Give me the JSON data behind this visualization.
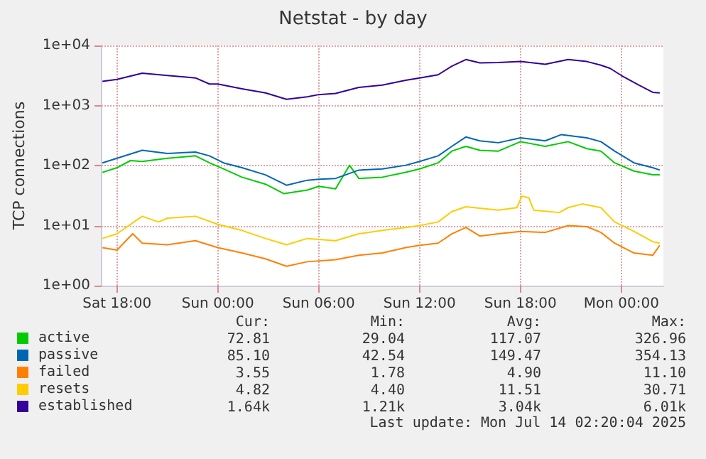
{
  "chart_data": {
    "type": "line",
    "title": "Netstat - by day",
    "ylabel": "TCP connections",
    "log": "y",
    "grid": true,
    "legend": "bottom left",
    "line_style": "solid",
    "marker": "none",
    "xlim": [
      "2025-07-12T17:05",
      "2025-07-14T02:30"
    ],
    "xticks": [
      {
        "value": "2025-07-12T18:00",
        "label": "Sat 18:00"
      },
      {
        "value": "2025-07-13T00:00",
        "label": "Sun 00:00"
      },
      {
        "value": "2025-07-13T06:00",
        "label": "Sun 06:00"
      },
      {
        "value": "2025-07-13T12:00",
        "label": "Sun 12:00"
      },
      {
        "value": "2025-07-13T18:00",
        "label": "Sun 18:00"
      },
      {
        "value": "2025-07-14T00:00",
        "label": "Mon 00:00"
      }
    ],
    "ylim": [
      1,
      10000
    ],
    "yticks": [
      {
        "value": 1,
        "label": "1e+00"
      },
      {
        "value": 10,
        "label": "1e+01"
      },
      {
        "value": 100,
        "label": "1e+02"
      },
      {
        "value": 1000,
        "label": "1e+03"
      },
      {
        "value": 10000,
        "label": "1e+04"
      }
    ],
    "series": [
      {
        "name": "active",
        "color": "#00cc00",
        "x": [
          "2025-07-12T17:08",
          "2025-07-12T18:00",
          "2025-07-12T18:48",
          "2025-07-12T19:30",
          "2025-07-12T21:00",
          "2025-07-12T22:40",
          "2025-07-12T23:30",
          "2025-07-13T00:20",
          "2025-07-13T01:26",
          "2025-07-13T02:50",
          "2025-07-13T03:56",
          "2025-07-13T05:19",
          "2025-07-13T06:00",
          "2025-07-13T07:00",
          "2025-07-13T07:50",
          "2025-07-13T08:23",
          "2025-07-13T09:47",
          "2025-07-13T11:10",
          "2025-07-13T12:00",
          "2025-07-13T13:06",
          "2025-07-13T13:55",
          "2025-07-13T14:45",
          "2025-07-13T15:35",
          "2025-07-13T16:41",
          "2025-07-13T18:00",
          "2025-07-13T19:28",
          "2025-07-13T20:50",
          "2025-07-13T21:57",
          "2025-07-13T22:47",
          "2025-07-13T23:36",
          "2025-07-14T00:45",
          "2025-07-14T01:52",
          "2025-07-14T02:17"
        ],
        "values": [
          77,
          92,
          121,
          117,
          132,
          145,
          111,
          88,
          64,
          49,
          34,
          39,
          45,
          41,
          101,
          61,
          64,
          77,
          88,
          111,
          174,
          209,
          180,
          174,
          250,
          209,
          250,
          191,
          174,
          111,
          81,
          70,
          70
        ]
      },
      {
        "name": "passive",
        "color": "#0066b3",
        "x": [
          "2025-07-12T17:08",
          "2025-07-12T18:00",
          "2025-07-12T19:30",
          "2025-07-12T21:00",
          "2025-07-12T22:40",
          "2025-07-12T23:30",
          "2025-07-13T00:20",
          "2025-07-13T01:26",
          "2025-07-13T02:50",
          "2025-07-13T04:05",
          "2025-07-13T05:19",
          "2025-07-13T06:00",
          "2025-07-13T07:00",
          "2025-07-13T08:23",
          "2025-07-13T09:47",
          "2025-07-13T11:10",
          "2025-07-13T12:00",
          "2025-07-13T13:06",
          "2025-07-13T13:55",
          "2025-07-13T14:45",
          "2025-07-13T15:35",
          "2025-07-13T16:41",
          "2025-07-13T18:00",
          "2025-07-13T19:28",
          "2025-07-13T20:26",
          "2025-07-13T21:57",
          "2025-07-13T22:47",
          "2025-07-13T23:36",
          "2025-07-14T00:45",
          "2025-07-14T01:52",
          "2025-07-14T02:17"
        ],
        "values": [
          111,
          132,
          180,
          159,
          168,
          145,
          111,
          92,
          70,
          47,
          57,
          59,
          61,
          84,
          88,
          101,
          117,
          145,
          209,
          299,
          258,
          240,
          290,
          258,
          328,
          290,
          250,
          174,
          111,
          92,
          84
        ]
      },
      {
        "name": "failed",
        "color": "#ff8000",
        "x": [
          "2025-07-12T17:08",
          "2025-07-12T18:00",
          "2025-07-12T18:56",
          "2025-07-12T19:30",
          "2025-07-12T21:00",
          "2025-07-12T22:40",
          "2025-07-13T00:00",
          "2025-07-13T01:26",
          "2025-07-13T02:50",
          "2025-07-13T04:05",
          "2025-07-13T05:19",
          "2025-07-13T07:00",
          "2025-07-13T08:23",
          "2025-07-13T09:47",
          "2025-07-13T11:10",
          "2025-07-13T12:00",
          "2025-07-13T13:06",
          "2025-07-13T13:55",
          "2025-07-13T14:45",
          "2025-07-13T15:35",
          "2025-07-13T16:41",
          "2025-07-13T18:00",
          "2025-07-13T19:28",
          "2025-07-13T20:50",
          "2025-07-13T21:57",
          "2025-07-13T22:47",
          "2025-07-13T23:36",
          "2025-07-14T00:45",
          "2025-07-14T01:52",
          "2025-07-14T02:17"
        ],
        "values": [
          4.3,
          3.9,
          7.3,
          5.1,
          4.8,
          5.6,
          4.3,
          3.5,
          2.8,
          2.1,
          2.5,
          2.7,
          3.2,
          3.5,
          4.3,
          4.7,
          5.1,
          7.3,
          9.3,
          6.7,
          7.3,
          8.0,
          7.7,
          10,
          9.6,
          7.7,
          5.1,
          3.5,
          3.2,
          4.7
        ]
      },
      {
        "name": "resets",
        "color": "#ffcc00",
        "x": [
          "2025-07-12T17:08",
          "2025-07-12T18:00",
          "2025-07-12T19:30",
          "2025-07-12T20:28",
          "2025-07-12T21:00",
          "2025-07-12T22:40",
          "2025-07-13T00:00",
          "2025-07-13T01:26",
          "2025-07-13T02:50",
          "2025-07-13T04:05",
          "2025-07-13T05:19",
          "2025-07-13T07:00",
          "2025-07-13T08:23",
          "2025-07-13T09:47",
          "2025-07-13T11:10",
          "2025-07-13T12:00",
          "2025-07-13T13:06",
          "2025-07-13T13:55",
          "2025-07-13T14:45",
          "2025-07-13T16:41",
          "2025-07-13T17:47",
          "2025-07-13T18:05",
          "2025-07-13T18:30",
          "2025-07-13T18:47",
          "2025-07-13T20:18",
          "2025-07-13T20:50",
          "2025-07-13T21:40",
          "2025-07-13T22:47",
          "2025-07-13T23:36",
          "2025-07-14T00:45",
          "2025-07-14T01:52",
          "2025-07-14T02:17"
        ],
        "values": [
          6.1,
          7.3,
          14.3,
          11.5,
          13.3,
          14.3,
          10.5,
          8.3,
          6.1,
          4.8,
          6.1,
          5.6,
          7.3,
          8.3,
          9.3,
          10,
          11.5,
          17.1,
          20.6,
          18.1,
          19.9,
          31,
          29,
          18.1,
          16.5,
          19.9,
          22.9,
          19.9,
          11.5,
          8.0,
          5.4,
          5.1
        ]
      },
      {
        "name": "established",
        "color": "#330099",
        "x": [
          "2025-07-12T17:08",
          "2025-07-12T18:00",
          "2025-07-12T19:30",
          "2025-07-12T21:00",
          "2025-07-12T22:40",
          "2025-07-12T23:30",
          "2025-07-13T00:00",
          "2025-07-13T01:26",
          "2025-07-13T02:50",
          "2025-07-13T04:05",
          "2025-07-13T05:19",
          "2025-07-13T06:00",
          "2025-07-13T07:00",
          "2025-07-13T08:23",
          "2025-07-13T09:47",
          "2025-07-13T11:10",
          "2025-07-13T12:00",
          "2025-07-13T13:06",
          "2025-07-13T13:55",
          "2025-07-13T14:45",
          "2025-07-13T15:35",
          "2025-07-13T16:41",
          "2025-07-13T18:00",
          "2025-07-13T19:28",
          "2025-07-13T20:50",
          "2025-07-13T21:57",
          "2025-07-13T22:47",
          "2025-07-13T23:20",
          "2025-07-14T00:00",
          "2025-07-14T01:02",
          "2025-07-14T01:52",
          "2025-07-14T02:17"
        ],
        "values": [
          2520,
          2720,
          3460,
          3160,
          2880,
          2280,
          2280,
          1900,
          1620,
          1270,
          1400,
          1520,
          1590,
          2000,
          2190,
          2630,
          2880,
          3250,
          4520,
          5830,
          5120,
          5200,
          5400,
          4870,
          5830,
          5400,
          4700,
          4150,
          3160,
          2190,
          1660,
          1620
        ]
      }
    ],
    "annotations": [
      "Cur:",
      "Min:",
      "Avg:",
      "Max:",
      "72.81",
      "29.04",
      "117.07",
      "326.96",
      "85.10",
      "42.54",
      "149.47",
      "354.13",
      "3.55",
      "1.78",
      "4.90",
      "11.10",
      "4.82",
      "4.40",
      "11.51",
      "30.71",
      "1.64k",
      "1.21k",
      "3.04k",
      "6.01k",
      "Last update: Mon Jul 14 02:20:04 2025"
    ]
  }
}
